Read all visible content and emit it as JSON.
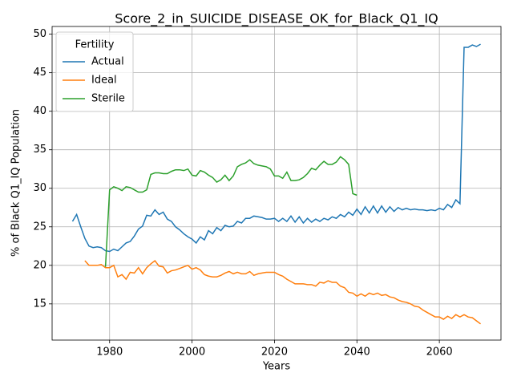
{
  "chart_data": {
    "type": "line",
    "title": "Score_2_in_SUICIDE_DISEASE_OK_for_Black_Q1_IQ",
    "x_label": "Years",
    "y_label": "% of Black Q1_IQ Population",
    "legend_title": "Fertility",
    "legend_position": "upper left",
    "grid": true,
    "xlim": [
      1966.05,
      2074.95
    ],
    "ylim": [
      10.3,
      51.0
    ],
    "xticks": [
      1980,
      2000,
      2020,
      2040,
      2060
    ],
    "yticks": [
      15,
      20,
      25,
      30,
      35,
      40,
      45,
      50
    ],
    "x": [
      1971,
      1972,
      1973,
      1974,
      1975,
      1976,
      1977,
      1978,
      1979,
      1980,
      1981,
      1982,
      1983,
      1984,
      1985,
      1986,
      1987,
      1988,
      1989,
      1990,
      1991,
      1992,
      1993,
      1994,
      1995,
      1996,
      1997,
      1998,
      1999,
      2000,
      2001,
      2002,
      2003,
      2004,
      2005,
      2006,
      2007,
      2008,
      2009,
      2010,
      2011,
      2012,
      2013,
      2014,
      2015,
      2016,
      2017,
      2018,
      2019,
      2020,
      2021,
      2022,
      2023,
      2024,
      2025,
      2026,
      2027,
      2028,
      2029,
      2030,
      2031,
      2032,
      2033,
      2034,
      2035,
      2036,
      2037,
      2038,
      2039,
      2040,
      2041,
      2042,
      2043,
      2044,
      2045,
      2046,
      2047,
      2048,
      2049,
      2050,
      2051,
      2052,
      2053,
      2054,
      2055,
      2056,
      2057,
      2058,
      2059,
      2060,
      2061,
      2062,
      2063,
      2064,
      2065,
      2066,
      2067,
      2068,
      2069,
      2070
    ],
    "series": [
      {
        "name": "Actual",
        "color": "#1f77b4",
        "values": [
          25.7,
          26.6,
          25.0,
          23.5,
          22.5,
          22.3,
          22.4,
          22.3,
          21.9,
          21.8,
          22.1,
          21.9,
          22.4,
          22.9,
          23.1,
          23.8,
          24.7,
          25.1,
          26.5,
          26.4,
          27.2,
          26.6,
          26.9,
          26.0,
          25.7,
          25.0,
          24.6,
          24.1,
          23.7,
          23.4,
          22.9,
          23.7,
          23.3,
          24.5,
          24.1,
          24.9,
          24.5,
          25.2,
          25.0,
          25.1,
          25.7,
          25.5,
          26.1,
          26.1,
          26.4,
          26.3,
          26.2,
          26.0,
          26.0,
          26.1,
          25.7,
          26.1,
          25.7,
          26.4,
          25.6,
          26.3,
          25.5,
          26.1,
          25.6,
          26.0,
          25.7,
          26.1,
          25.9,
          26.3,
          26.1,
          26.6,
          26.3,
          26.9,
          26.5,
          27.3,
          26.6,
          27.6,
          26.8,
          27.7,
          26.8,
          27.7,
          26.9,
          27.6,
          27.0,
          27.5,
          27.2,
          27.4,
          27.2,
          27.3,
          27.2,
          27.2,
          27.1,
          27.2,
          27.1,
          27.4,
          27.2,
          27.9,
          27.5,
          28.5,
          28.0,
          48.3,
          48.3,
          48.6,
          48.4,
          48.7
        ]
      },
      {
        "name": "Ideal",
        "color": "#ff7f0e",
        "values": [
          null,
          null,
          null,
          20.6,
          20.0,
          20.0,
          20.0,
          20.1,
          19.7,
          19.7,
          20.0,
          18.5,
          18.8,
          18.2,
          19.1,
          19.0,
          19.7,
          18.9,
          19.7,
          20.2,
          20.6,
          19.9,
          19.8,
          19.0,
          19.3,
          19.4,
          19.6,
          19.8,
          20.0,
          19.5,
          19.7,
          19.4,
          18.8,
          18.6,
          18.5,
          18.5,
          18.7,
          19.0,
          19.2,
          18.9,
          19.1,
          18.9,
          18.9,
          19.2,
          18.7,
          18.9,
          19.0,
          19.1,
          19.1,
          19.1,
          18.8,
          18.6,
          18.2,
          17.9,
          17.6,
          17.6,
          17.6,
          17.5,
          17.5,
          17.3,
          17.8,
          17.7,
          18.0,
          17.8,
          17.8,
          17.3,
          17.1,
          16.5,
          16.4,
          16.0,
          16.3,
          16.0,
          16.4,
          16.2,
          16.4,
          16.1,
          16.2,
          15.9,
          15.8,
          15.5,
          15.3,
          15.2,
          15.0,
          14.7,
          14.6,
          14.2,
          13.9,
          13.6,
          13.3,
          13.3,
          13.0,
          13.4,
          13.1,
          13.6,
          13.3,
          13.6,
          13.3,
          13.2,
          12.8,
          12.4
        ]
      },
      {
        "name": "Sterile",
        "color": "#2ca02c",
        "values": [
          null,
          null,
          null,
          null,
          null,
          null,
          null,
          null,
          19.8,
          29.8,
          30.2,
          30.0,
          29.7,
          30.2,
          30.1,
          29.8,
          29.5,
          29.5,
          29.8,
          31.8,
          32.0,
          32.0,
          31.9,
          31.9,
          32.2,
          32.4,
          32.4,
          32.3,
          32.5,
          31.7,
          31.6,
          32.3,
          32.1,
          31.7,
          31.4,
          30.8,
          31.1,
          31.7,
          31.0,
          31.6,
          32.8,
          33.1,
          33.3,
          33.7,
          33.2,
          33.0,
          32.9,
          32.8,
          32.5,
          31.6,
          31.6,
          31.3,
          32.1,
          31.0,
          31.0,
          31.1,
          31.4,
          31.9,
          32.6,
          32.4,
          33.0,
          33.5,
          33.1,
          33.1,
          33.4,
          34.1,
          33.7,
          33.1,
          29.3,
          29.1,
          null,
          null,
          null,
          null,
          null,
          null,
          null,
          null,
          null,
          null,
          null,
          null,
          null,
          null,
          null,
          null,
          null,
          null,
          null,
          null,
          null,
          null,
          null,
          null,
          null,
          null,
          null,
          null,
          null,
          null
        ]
      }
    ]
  }
}
